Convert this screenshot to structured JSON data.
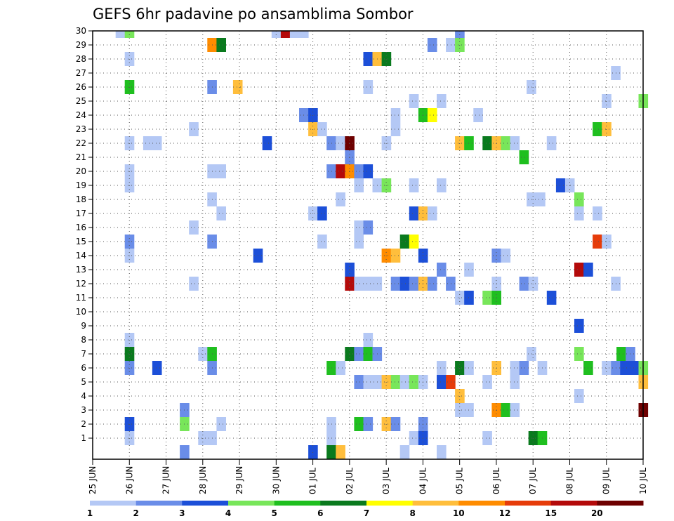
{
  "chart_data": {
    "type": "heatmap",
    "title": "GEFS 6hr padavine po ansamblima Sombor",
    "x_tick_labels": [
      "25 JUN",
      "26 JUN",
      "27 JUN",
      "28 JUN",
      "29 JUN",
      "30 JUN",
      "01 JUL",
      "02 JUL",
      "03 JUL",
      "04 JUL",
      "05 JUL",
      "06 JUL",
      "07 JUL",
      "08 JUL",
      "09 JUL",
      "10 JUL"
    ],
    "x_range_days": [
      0,
      15
    ],
    "y_range": [
      1,
      30
    ],
    "y_tick_labels": [
      "1",
      "2",
      "3",
      "4",
      "5",
      "6",
      "7",
      "8",
      "9",
      "10",
      "11",
      "12",
      "13",
      "14",
      "15",
      "16",
      "17",
      "18",
      "19",
      "20",
      "21",
      "22",
      "23",
      "24",
      "25",
      "26",
      "27",
      "28",
      "29",
      "30"
    ],
    "grid": true,
    "colorbar": {
      "levels": [
        "1",
        "2",
        "3",
        "4",
        "5",
        "6",
        "7",
        "8",
        "10",
        "12",
        "15",
        "20"
      ],
      "colors": [
        "#b4c8f5",
        "#6a8de8",
        "#1c4fd8",
        "#78e65a",
        "#1fbf1f",
        "#0a7a1e",
        "#ffff00",
        "#ffbe3c",
        "#ff8c00",
        "#e63c0a",
        "#b40a0a",
        "#6e0000"
      ]
    },
    "cells": [
      {
        "x": 0.75,
        "y": 30,
        "v": 1
      },
      {
        "x": 1.0,
        "y": 30,
        "v": 4
      },
      {
        "x": 5.0,
        "y": 30,
        "v": 1
      },
      {
        "x": 5.25,
        "y": 30,
        "v": 15
      },
      {
        "x": 5.5,
        "y": 30,
        "v": 1
      },
      {
        "x": 5.75,
        "y": 30,
        "v": 1
      },
      {
        "x": 10.0,
        "y": 30,
        "v": 2
      },
      {
        "x": 3.25,
        "y": 29,
        "v": 10
      },
      {
        "x": 3.5,
        "y": 29,
        "v": 6
      },
      {
        "x": 9.25,
        "y": 29,
        "v": 2
      },
      {
        "x": 9.75,
        "y": 29,
        "v": 1
      },
      {
        "x": 10.0,
        "y": 29,
        "v": 4
      },
      {
        "x": 1.0,
        "y": 28,
        "v": 1
      },
      {
        "x": 7.5,
        "y": 28,
        "v": 3
      },
      {
        "x": 7.75,
        "y": 28,
        "v": 8
      },
      {
        "x": 8.0,
        "y": 28,
        "v": 6
      },
      {
        "x": 14.25,
        "y": 27,
        "v": 1
      },
      {
        "x": 1.0,
        "y": 26,
        "v": 5
      },
      {
        "x": 3.25,
        "y": 26,
        "v": 2
      },
      {
        "x": 3.95,
        "y": 26,
        "v": 8
      },
      {
        "x": 7.5,
        "y": 26,
        "v": 1
      },
      {
        "x": 11.95,
        "y": 26,
        "v": 1
      },
      {
        "x": 8.75,
        "y": 25,
        "v": 1
      },
      {
        "x": 9.5,
        "y": 25,
        "v": 1
      },
      {
        "x": 14.0,
        "y": 25,
        "v": 1
      },
      {
        "x": 15.0,
        "y": 25,
        "v": 4
      },
      {
        "x": 5.75,
        "y": 24,
        "v": 2
      },
      {
        "x": 6.0,
        "y": 24,
        "v": 3
      },
      {
        "x": 8.25,
        "y": 24,
        "v": 1
      },
      {
        "x": 9.0,
        "y": 24,
        "v": 5
      },
      {
        "x": 9.25,
        "y": 24,
        "v": 7
      },
      {
        "x": 10.5,
        "y": 24,
        "v": 1
      },
      {
        "x": 2.75,
        "y": 23,
        "v": 1
      },
      {
        "x": 6.0,
        "y": 23,
        "v": 8
      },
      {
        "x": 6.25,
        "y": 23,
        "v": 1
      },
      {
        "x": 8.25,
        "y": 23,
        "v": 1
      },
      {
        "x": 13.75,
        "y": 23,
        "v": 5
      },
      {
        "x": 14.0,
        "y": 23,
        "v": 8
      },
      {
        "x": 1.0,
        "y": 22,
        "v": 1
      },
      {
        "x": 1.5,
        "y": 22,
        "v": 1
      },
      {
        "x": 1.75,
        "y": 22,
        "v": 1
      },
      {
        "x": 4.75,
        "y": 22,
        "v": 3
      },
      {
        "x": 6.5,
        "y": 22,
        "v": 2
      },
      {
        "x": 6.75,
        "y": 22,
        "v": 1
      },
      {
        "x": 7.0,
        "y": 22,
        "v": 20
      },
      {
        "x": 8.0,
        "y": 22,
        "v": 1
      },
      {
        "x": 10.0,
        "y": 22,
        "v": 8
      },
      {
        "x": 10.25,
        "y": 22,
        "v": 5
      },
      {
        "x": 10.75,
        "y": 22,
        "v": 6
      },
      {
        "x": 11.0,
        "y": 22,
        "v": 8
      },
      {
        "x": 11.25,
        "y": 22,
        "v": 4
      },
      {
        "x": 11.5,
        "y": 22,
        "v": 1
      },
      {
        "x": 12.5,
        "y": 22,
        "v": 1
      },
      {
        "x": 7.0,
        "y": 21,
        "v": 2
      },
      {
        "x": 11.75,
        "y": 21,
        "v": 5
      },
      {
        "x": 1.0,
        "y": 20,
        "v": 1
      },
      {
        "x": 3.25,
        "y": 20,
        "v": 1
      },
      {
        "x": 3.5,
        "y": 20,
        "v": 1
      },
      {
        "x": 6.5,
        "y": 20,
        "v": 2
      },
      {
        "x": 6.75,
        "y": 20,
        "v": 15
      },
      {
        "x": 7.0,
        "y": 20,
        "v": 10
      },
      {
        "x": 7.25,
        "y": 20,
        "v": 2
      },
      {
        "x": 7.5,
        "y": 20,
        "v": 3
      },
      {
        "x": 1.0,
        "y": 19,
        "v": 1
      },
      {
        "x": 7.25,
        "y": 19,
        "v": 1
      },
      {
        "x": 7.75,
        "y": 19,
        "v": 1
      },
      {
        "x": 8.0,
        "y": 19,
        "v": 4
      },
      {
        "x": 8.75,
        "y": 19,
        "v": 1
      },
      {
        "x": 9.5,
        "y": 19,
        "v": 1
      },
      {
        "x": 12.75,
        "y": 19,
        "v": 3
      },
      {
        "x": 13.0,
        "y": 19,
        "v": 1
      },
      {
        "x": 3.25,
        "y": 18,
        "v": 1
      },
      {
        "x": 6.75,
        "y": 18,
        "v": 1
      },
      {
        "x": 11.95,
        "y": 18,
        "v": 1
      },
      {
        "x": 12.2,
        "y": 18,
        "v": 1
      },
      {
        "x": 13.25,
        "y": 18,
        "v": 4
      },
      {
        "x": 3.5,
        "y": 17,
        "v": 1
      },
      {
        "x": 6.0,
        "y": 17,
        "v": 1
      },
      {
        "x": 6.25,
        "y": 17,
        "v": 3
      },
      {
        "x": 8.75,
        "y": 17,
        "v": 3
      },
      {
        "x": 9.0,
        "y": 17,
        "v": 8
      },
      {
        "x": 9.25,
        "y": 17,
        "v": 1
      },
      {
        "x": 13.25,
        "y": 17,
        "v": 1
      },
      {
        "x": 13.75,
        "y": 17,
        "v": 1
      },
      {
        "x": 2.75,
        "y": 16,
        "v": 1
      },
      {
        "x": 7.25,
        "y": 16,
        "v": 1
      },
      {
        "x": 7.5,
        "y": 16,
        "v": 2
      },
      {
        "x": 1.0,
        "y": 15,
        "v": 2
      },
      {
        "x": 3.25,
        "y": 15,
        "v": 2
      },
      {
        "x": 6.25,
        "y": 15,
        "v": 1
      },
      {
        "x": 7.25,
        "y": 15,
        "v": 1
      },
      {
        "x": 8.5,
        "y": 15,
        "v": 6
      },
      {
        "x": 8.75,
        "y": 15,
        "v": 7
      },
      {
        "x": 13.75,
        "y": 15,
        "v": 12
      },
      {
        "x": 14.0,
        "y": 15,
        "v": 1
      },
      {
        "x": 1.0,
        "y": 14,
        "v": 1
      },
      {
        "x": 4.5,
        "y": 14,
        "v": 3
      },
      {
        "x": 8.0,
        "y": 14,
        "v": 10
      },
      {
        "x": 8.25,
        "y": 14,
        "v": 8
      },
      {
        "x": 9.0,
        "y": 14,
        "v": 3
      },
      {
        "x": 11.0,
        "y": 14,
        "v": 2
      },
      {
        "x": 11.25,
        "y": 14,
        "v": 1
      },
      {
        "x": 9.5,
        "y": 13,
        "v": 2
      },
      {
        "x": 10.25,
        "y": 13,
        "v": 1
      },
      {
        "x": 13.25,
        "y": 13,
        "v": 15
      },
      {
        "x": 13.5,
        "y": 13,
        "v": 3
      },
      {
        "x": 7.0,
        "y": 13,
        "v": 3
      },
      {
        "x": 2.75,
        "y": 12,
        "v": 1
      },
      {
        "x": 7.0,
        "y": 12,
        "v": 15
      },
      {
        "x": 7.25,
        "y": 12,
        "v": 1
      },
      {
        "x": 7.5,
        "y": 12,
        "v": 1
      },
      {
        "x": 7.75,
        "y": 12,
        "v": 1
      },
      {
        "x": 8.25,
        "y": 12,
        "v": 2
      },
      {
        "x": 8.5,
        "y": 12,
        "v": 3
      },
      {
        "x": 8.75,
        "y": 12,
        "v": 2
      },
      {
        "x": 9.0,
        "y": 12,
        "v": 8
      },
      {
        "x": 9.25,
        "y": 12,
        "v": 2
      },
      {
        "x": 9.75,
        "y": 12,
        "v": 2
      },
      {
        "x": 11.0,
        "y": 12,
        "v": 1
      },
      {
        "x": 11.75,
        "y": 12,
        "v": 2
      },
      {
        "x": 12.0,
        "y": 12,
        "v": 1
      },
      {
        "x": 14.25,
        "y": 12,
        "v": 1
      },
      {
        "x": 10.0,
        "y": 11,
        "v": 1
      },
      {
        "x": 10.25,
        "y": 11,
        "v": 3
      },
      {
        "x": 10.75,
        "y": 11,
        "v": 4
      },
      {
        "x": 11.0,
        "y": 11,
        "v": 5
      },
      {
        "x": 12.5,
        "y": 11,
        "v": 3
      },
      {
        "x": 13.25,
        "y": 9,
        "v": 3
      },
      {
        "x": 1.0,
        "y": 8,
        "v": 1
      },
      {
        "x": 7.5,
        "y": 8,
        "v": 1
      },
      {
        "x": 1.0,
        "y": 7,
        "v": 6
      },
      {
        "x": 3.0,
        "y": 7,
        "v": 1
      },
      {
        "x": 3.25,
        "y": 7,
        "v": 5
      },
      {
        "x": 7.0,
        "y": 7,
        "v": 6
      },
      {
        "x": 7.25,
        "y": 7,
        "v": 2
      },
      {
        "x": 7.5,
        "y": 7,
        "v": 5
      },
      {
        "x": 7.75,
        "y": 7,
        "v": 2
      },
      {
        "x": 11.95,
        "y": 7,
        "v": 1
      },
      {
        "x": 13.25,
        "y": 7,
        "v": 4
      },
      {
        "x": 14.4,
        "y": 7,
        "v": 5
      },
      {
        "x": 14.65,
        "y": 7,
        "v": 2
      },
      {
        "x": 1.0,
        "y": 6,
        "v": 2
      },
      {
        "x": 1.75,
        "y": 6,
        "v": 3
      },
      {
        "x": 3.25,
        "y": 6,
        "v": 2
      },
      {
        "x": 6.5,
        "y": 6,
        "v": 5
      },
      {
        "x": 6.75,
        "y": 6,
        "v": 1
      },
      {
        "x": 9.5,
        "y": 6,
        "v": 1
      },
      {
        "x": 10.0,
        "y": 6,
        "v": 6
      },
      {
        "x": 10.25,
        "y": 6,
        "v": 1
      },
      {
        "x": 11.0,
        "y": 6,
        "v": 8
      },
      {
        "x": 11.5,
        "y": 6,
        "v": 1
      },
      {
        "x": 11.75,
        "y": 6,
        "v": 2
      },
      {
        "x": 12.25,
        "y": 6,
        "v": 1
      },
      {
        "x": 13.5,
        "y": 6,
        "v": 5
      },
      {
        "x": 14.0,
        "y": 6,
        "v": 1
      },
      {
        "x": 14.25,
        "y": 6,
        "v": 2
      },
      {
        "x": 14.5,
        "y": 6,
        "v": 3
      },
      {
        "x": 14.75,
        "y": 6,
        "v": 3
      },
      {
        "x": 15.0,
        "y": 6,
        "v": 4
      },
      {
        "x": 7.25,
        "y": 5,
        "v": 2
      },
      {
        "x": 7.5,
        "y": 5,
        "v": 1
      },
      {
        "x": 7.75,
        "y": 5,
        "v": 1
      },
      {
        "x": 8.0,
        "y": 5,
        "v": 8
      },
      {
        "x": 8.25,
        "y": 5,
        "v": 4
      },
      {
        "x": 8.5,
        "y": 5,
        "v": 1
      },
      {
        "x": 8.75,
        "y": 5,
        "v": 4
      },
      {
        "x": 9.0,
        "y": 5,
        "v": 1
      },
      {
        "x": 9.5,
        "y": 5,
        "v": 3
      },
      {
        "x": 9.75,
        "y": 5,
        "v": 12
      },
      {
        "x": 10.75,
        "y": 5,
        "v": 1
      },
      {
        "x": 11.5,
        "y": 5,
        "v": 1
      },
      {
        "x": 15.0,
        "y": 5,
        "v": 8
      },
      {
        "x": 10.0,
        "y": 4,
        "v": 8
      },
      {
        "x": 13.25,
        "y": 4,
        "v": 1
      },
      {
        "x": 2.5,
        "y": 3,
        "v": 2
      },
      {
        "x": 10.0,
        "y": 3,
        "v": 1
      },
      {
        "x": 10.25,
        "y": 3,
        "v": 1
      },
      {
        "x": 11.0,
        "y": 3,
        "v": 10
      },
      {
        "x": 11.25,
        "y": 3,
        "v": 5
      },
      {
        "x": 11.5,
        "y": 3,
        "v": 1
      },
      {
        "x": 15.0,
        "y": 3,
        "v": 20
      },
      {
        "x": 1.0,
        "y": 2,
        "v": 3
      },
      {
        "x": 2.5,
        "y": 2,
        "v": 4
      },
      {
        "x": 3.5,
        "y": 2,
        "v": 1
      },
      {
        "x": 6.5,
        "y": 2,
        "v": 1
      },
      {
        "x": 7.25,
        "y": 2,
        "v": 5
      },
      {
        "x": 7.5,
        "y": 2,
        "v": 2
      },
      {
        "x": 8.0,
        "y": 2,
        "v": 8
      },
      {
        "x": 8.25,
        "y": 2,
        "v": 2
      },
      {
        "x": 9.0,
        "y": 2,
        "v": 2
      },
      {
        "x": 1.0,
        "y": 1,
        "v": 1
      },
      {
        "x": 3.0,
        "y": 1,
        "v": 1
      },
      {
        "x": 3.25,
        "y": 1,
        "v": 1
      },
      {
        "x": 6.5,
        "y": 1,
        "v": 1
      },
      {
        "x": 8.75,
        "y": 1,
        "v": 1
      },
      {
        "x": 9.0,
        "y": 1,
        "v": 3
      },
      {
        "x": 10.75,
        "y": 1,
        "v": 1
      },
      {
        "x": 12.0,
        "y": 1,
        "v": 6
      },
      {
        "x": 12.25,
        "y": 1,
        "v": 5
      },
      {
        "x": 2.5,
        "y": 0,
        "v": 2
      },
      {
        "x": 6.0,
        "y": 0,
        "v": 3
      },
      {
        "x": 6.5,
        "y": 0,
        "v": 6
      },
      {
        "x": 6.75,
        "y": 0,
        "v": 8
      },
      {
        "x": 8.5,
        "y": 0,
        "v": 1
      },
      {
        "x": 9.5,
        "y": 0,
        "v": 1
      }
    ]
  }
}
